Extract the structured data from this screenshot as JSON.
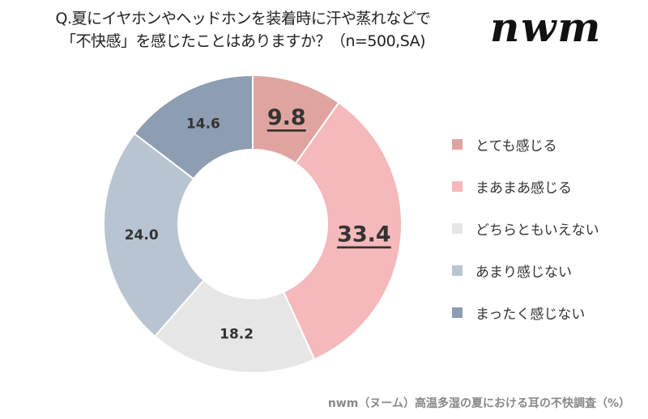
{
  "title_line1": "Q.夏にイヤホンやヘッドホンを装着時に汗や蒸れなどで",
  "title_line2": "「不快感」を感じたことはありますか？（n=500,SA)",
  "logo_text": "nwm",
  "source": "nwm（ヌーム）高温多湿の夏における耳の不快調査（%）",
  "chart_data": {
    "type": "pie",
    "donut": true,
    "unit": "%",
    "legend_position": "right",
    "categories": [
      "とても感じる",
      "まあまあ感じる",
      "どちらともいえない",
      "あまり感じない",
      "まったく感じない"
    ],
    "values": [
      9.8,
      33.4,
      18.2,
      24.0,
      14.6
    ],
    "labels": [
      "9.8",
      "33.4",
      "18.2",
      "24.0",
      "14.6"
    ],
    "highlighted": [
      true,
      true,
      false,
      false,
      false
    ],
    "colors": [
      "#e0a4a0",
      "#f5b9bb",
      "#e6e6e6",
      "#b8c4d1",
      "#8d9db2"
    ]
  }
}
